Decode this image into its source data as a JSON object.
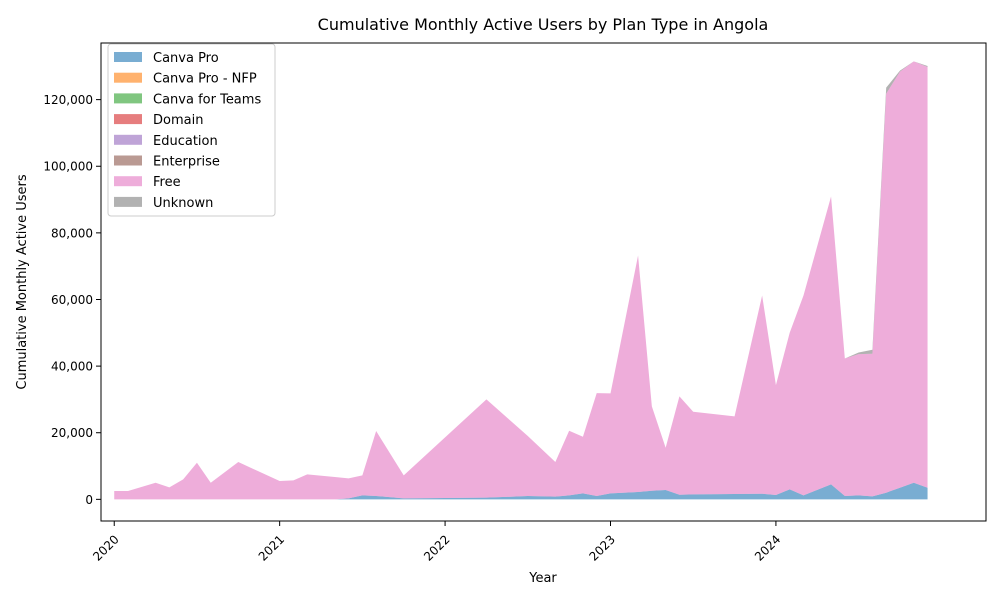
{
  "chart_data": {
    "type": "area",
    "stacked": true,
    "title": "Cumulative Monthly Active Users by Plan Type in Angola",
    "xlabel": "Year",
    "ylabel": "Cumulative Monthly Active Users",
    "xlim": [
      2019.92,
      2025.27
    ],
    "ylim": [
      -6500,
      137000
    ],
    "x_ticks": [
      {
        "value": 2020,
        "label": "2020"
      },
      {
        "value": 2021,
        "label": "2021"
      },
      {
        "value": 2022,
        "label": "2022"
      },
      {
        "value": 2023,
        "label": "2023"
      },
      {
        "value": 2024,
        "label": "2024"
      }
    ],
    "y_ticks": [
      {
        "value": 0,
        "label": "0"
      },
      {
        "value": 20000,
        "label": "20,000"
      },
      {
        "value": 40000,
        "label": "40,000"
      },
      {
        "value": 60000,
        "label": "60,000"
      },
      {
        "value": 80000,
        "label": "80,000"
      },
      {
        "value": 100000,
        "label": "100,000"
      },
      {
        "value": 120000,
        "label": "120,000"
      }
    ],
    "grid": false,
    "legend_position": "top-left",
    "x": [
      "2020-01",
      "2020-02",
      "2020-04",
      "2020-05",
      "2020-06",
      "2020-07",
      "2020-08",
      "2020-10",
      "2021-01",
      "2021-02",
      "2021-03",
      "2021-05",
      "2021-06",
      "2021-07",
      "2021-08",
      "2021-10",
      "2022-04",
      "2022-07",
      "2022-09",
      "2022-10",
      "2022-11",
      "2022-12",
      "2023-01",
      "2023-03",
      "2023-04",
      "2023-05",
      "2023-06",
      "2023-07",
      "2023-10",
      "2023-12",
      "2024-01",
      "2024-02",
      "2024-03",
      "2024-05",
      "2024-06",
      "2024-07",
      "2024-08",
      "2024-09",
      "2024-10",
      "2024-11",
      "2024-12"
    ],
    "series": [
      {
        "name": "Canva Pro",
        "color": "#1f77b4",
        "values": [
          0,
          0,
          0,
          0,
          0,
          0,
          0,
          0,
          0,
          0,
          0,
          0,
          300,
          1200,
          1000,
          300,
          500,
          1000,
          800,
          1200,
          1800,
          1000,
          1800,
          2200,
          2600,
          2800,
          1400,
          1500,
          1600,
          1700,
          1300,
          3000,
          1200,
          4500,
          1000,
          1200,
          900,
          2000,
          3500,
          5000,
          3500
        ]
      },
      {
        "name": "Canva Pro - NFP",
        "color": "#ff7f0e",
        "values": [
          0,
          0,
          0,
          0,
          0,
          0,
          0,
          0,
          0,
          0,
          0,
          0,
          0,
          0,
          0,
          0,
          0,
          0,
          0,
          0,
          0,
          0,
          0,
          0,
          0,
          0,
          0,
          0,
          0,
          0,
          0,
          0,
          0,
          0,
          0,
          0,
          0,
          0,
          0,
          0,
          0
        ]
      },
      {
        "name": "Canva for Teams",
        "color": "#2ca02c",
        "values": [
          0,
          0,
          0,
          0,
          0,
          0,
          0,
          0,
          0,
          0,
          0,
          0,
          0,
          0,
          0,
          0,
          0,
          0,
          0,
          0,
          0,
          0,
          0,
          0,
          0,
          0,
          0,
          0,
          0,
          0,
          0,
          0,
          0,
          0,
          0,
          0,
          0,
          0,
          0,
          0,
          0
        ]
      },
      {
        "name": "Domain",
        "color": "#d62728",
        "values": [
          0,
          0,
          0,
          0,
          0,
          0,
          0,
          0,
          0,
          0,
          0,
          0,
          0,
          0,
          0,
          0,
          0,
          0,
          0,
          0,
          0,
          0,
          0,
          0,
          0,
          0,
          0,
          0,
          0,
          0,
          0,
          0,
          0,
          0,
          0,
          0,
          0,
          0,
          0,
          0,
          0
        ]
      },
      {
        "name": "Education",
        "color": "#9467bd",
        "values": [
          0,
          0,
          0,
          0,
          0,
          0,
          0,
          0,
          0,
          0,
          0,
          0,
          0,
          0,
          0,
          0,
          0,
          0,
          0,
          0,
          0,
          0,
          0,
          0,
          0,
          0,
          0,
          0,
          0,
          0,
          0,
          0,
          0,
          0,
          0,
          0,
          0,
          0,
          0,
          0,
          0
        ]
      },
      {
        "name": "Enterprise",
        "color": "#8c564b",
        "values": [
          0,
          0,
          0,
          0,
          0,
          0,
          0,
          0,
          0,
          0,
          0,
          0,
          0,
          0,
          0,
          0,
          0,
          0,
          0,
          0,
          0,
          0,
          0,
          0,
          0,
          0,
          0,
          0,
          0,
          0,
          0,
          0,
          0,
          0,
          0,
          0,
          0,
          0,
          0,
          0,
          0
        ]
      },
      {
        "name": "Free",
        "color": "#e377c2",
        "values": [
          2500,
          2500,
          5000,
          3600,
          6000,
          11000,
          5000,
          11200,
          5500,
          5700,
          7500,
          6700,
          6000,
          6000,
          19500,
          6900,
          29500,
          18000,
          10400,
          19400,
          17000,
          30900,
          30000,
          71000,
          25300,
          12700,
          29500,
          24800,
          23300,
          59500,
          33000,
          47000,
          60000,
          86400,
          41300,
          42400,
          42800,
          119800,
          124900,
          126500,
          126300
        ]
      },
      {
        "name": "Unknown",
        "color": "#7f7f7f",
        "values": [
          0,
          0,
          0,
          0,
          0,
          0,
          0,
          0,
          0,
          0,
          0,
          0,
          0,
          0,
          0,
          0,
          0,
          0,
          0,
          0,
          0,
          0,
          0,
          0,
          0,
          0,
          0,
          0,
          0,
          0,
          0,
          0,
          0,
          0,
          0,
          500,
          1200,
          1800,
          300,
          0,
          300
        ]
      }
    ]
  }
}
